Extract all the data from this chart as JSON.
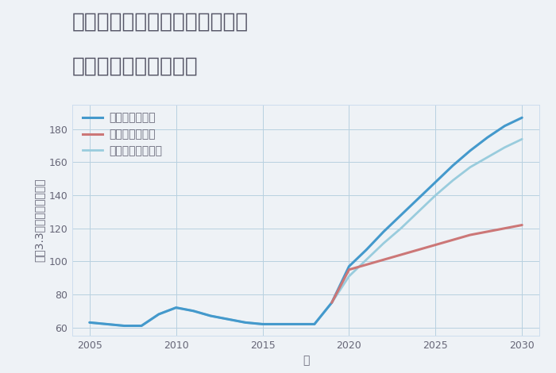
{
  "title_line1": "大阪府大阪市東淀川区東中島の",
  "title_line2": "中古戸建ての価格推移",
  "xlabel": "年",
  "ylabel": "坪（3.3㎡）単価（万円）",
  "ylim": [
    55,
    195
  ],
  "yticks": [
    60,
    80,
    100,
    120,
    140,
    160,
    180
  ],
  "xlim": [
    2004,
    2031
  ],
  "xticks": [
    2005,
    2010,
    2015,
    2020,
    2025,
    2030
  ],
  "background_color": "#eef2f6",
  "plot_background": "#eef2f6",
  "grid_color": "#b8d0e0",
  "series": {
    "good": {
      "label": "グッドシナリオ",
      "color": "#4499cc",
      "linewidth": 2.2,
      "x": [
        2005,
        2006,
        2007,
        2008,
        2009,
        2010,
        2011,
        2012,
        2013,
        2014,
        2015,
        2016,
        2017,
        2018,
        2019,
        2020,
        2021,
        2022,
        2023,
        2024,
        2025,
        2026,
        2027,
        2028,
        2029,
        2030
      ],
      "y": [
        63,
        62,
        61,
        61,
        68,
        72,
        70,
        67,
        65,
        63,
        62,
        62,
        62,
        62,
        75,
        97,
        107,
        118,
        128,
        138,
        148,
        158,
        167,
        175,
        182,
        187
      ]
    },
    "bad": {
      "label": "バッドシナリオ",
      "color": "#cc7777",
      "linewidth": 2.2,
      "x": [
        2019,
        2020,
        2021,
        2022,
        2023,
        2024,
        2025,
        2026,
        2027,
        2028,
        2029,
        2030
      ],
      "y": [
        75,
        95,
        98,
        101,
        104,
        107,
        110,
        113,
        116,
        118,
        120,
        122
      ]
    },
    "normal": {
      "label": "ノーマルシナリオ",
      "color": "#99ccdd",
      "linewidth": 2.0,
      "x": [
        2005,
        2006,
        2007,
        2008,
        2009,
        2010,
        2011,
        2012,
        2013,
        2014,
        2015,
        2016,
        2017,
        2018,
        2019,
        2020,
        2021,
        2022,
        2023,
        2024,
        2025,
        2026,
        2027,
        2028,
        2029,
        2030
      ],
      "y": [
        63,
        62,
        61,
        61,
        68,
        72,
        70,
        67,
        65,
        63,
        62,
        62,
        62,
        62,
        75,
        91,
        101,
        111,
        120,
        130,
        140,
        149,
        157,
        163,
        169,
        174
      ]
    }
  },
  "title_fontsize": 19,
  "label_fontsize": 10,
  "tick_fontsize": 9,
  "legend_fontsize": 10,
  "title_color": "#555566",
  "text_color": "#666677"
}
